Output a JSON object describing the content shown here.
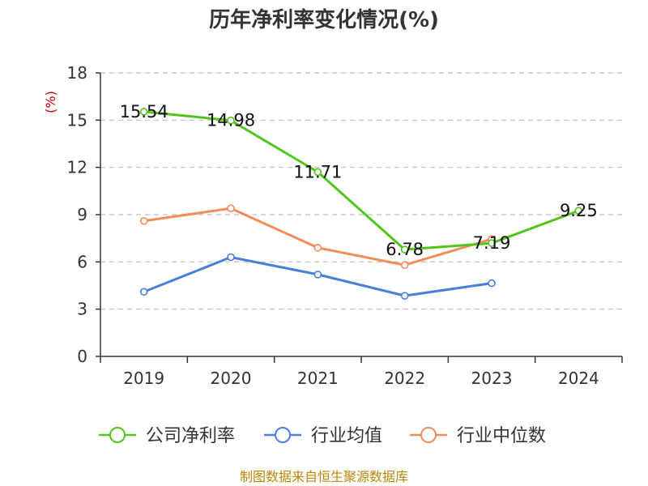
{
  "chart_data": {
    "type": "line",
    "title": "历年净利率变化情况(%)",
    "ylabel": "(%)",
    "xlabel": "",
    "categories": [
      "2019",
      "2020",
      "2021",
      "2022",
      "2023",
      "2024"
    ],
    "ylim": [
      0,
      18
    ],
    "yticks": [
      0,
      3,
      6,
      9,
      12,
      15,
      18
    ],
    "grid": true,
    "legend_position": "bottom",
    "series": [
      {
        "name": "公司净利率",
        "color": "#52c41a",
        "values": [
          15.54,
          14.98,
          11.71,
          6.78,
          7.19,
          9.25
        ],
        "data_labels": [
          "15.54",
          "14.98",
          "11.71",
          "6.78",
          "7.19",
          "9.25"
        ]
      },
      {
        "name": "行业均值",
        "color": "#4a7fd6",
        "values": [
          4.1,
          6.3,
          5.2,
          3.85,
          4.65,
          null
        ]
      },
      {
        "name": "行业中位数",
        "color": "#f28c5a",
        "values": [
          8.6,
          9.4,
          6.9,
          5.8,
          7.45,
          null
        ]
      }
    ]
  },
  "source": "制图数据来自恒生聚源数据库"
}
